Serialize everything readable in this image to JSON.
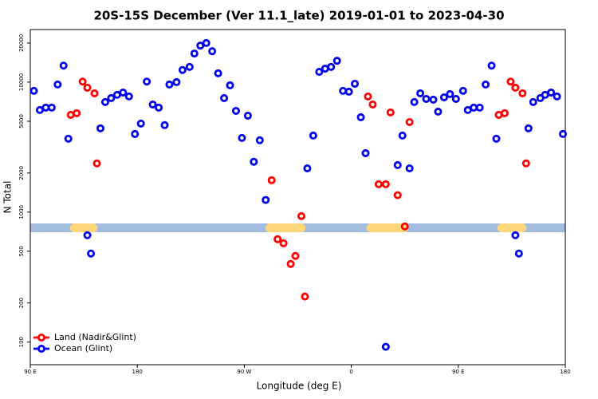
{
  "chart_data": {
    "type": "scatter",
    "title": "20S-15S December (Ver 11.1_late)   2019-01-01 to 2023-04-30",
    "x_label": "Longitude (deg E)",
    "y_label": "N Total",
    "xlim": [
      90,
      540
    ],
    "ylim": [
      67,
      25400
    ],
    "y_log": true,
    "legend": "bottom-left",
    "xticks": [
      {
        "value": 90,
        "label": "90 E"
      },
      180,
      {
        "value": 270,
        "label": "90 W"
      },
      {
        "value": 360,
        "label": "0"
      },
      {
        "value": 450,
        "label": "90 E"
      },
      {
        "value": 540,
        "label": "180"
      }
    ],
    "yticks": [
      100,
      200,
      500,
      1000,
      2000,
      5000,
      10000,
      20000
    ],
    "series": [
      {
        "name": "Land (Nadir&Glint)",
        "color": "#ff0000",
        "x": [
          124,
          129,
          134,
          138,
          144,
          146,
          293,
          298,
          303,
          309,
          313,
          318,
          321,
          374,
          378,
          383,
          389,
          393,
          399,
          405,
          409,
          484,
          489,
          494,
          498,
          504,
          507
        ],
        "values": [
          5600,
          5770,
          10100,
          9060,
          8200,
          2370,
          1760,
          619,
          576,
          399,
          460,
          931,
          224,
          7760,
          6730,
          1640,
          1640,
          5850,
          1350,
          776,
          4930,
          5600,
          5770,
          10100,
          9060,
          8200,
          2370
        ]
      },
      {
        "name": "Ocean (Glint)",
        "color": "#0000ee",
        "x": [
          93,
          98,
          103,
          108,
          113,
          118,
          122,
          138,
          141,
          149,
          153,
          158,
          163,
          168,
          173,
          178,
          183,
          188,
          193,
          198,
          203,
          207,
          213,
          218,
          224,
          228,
          233,
          238,
          243,
          248,
          253,
          258,
          263,
          268,
          273,
          278,
          283,
          288,
          323,
          328,
          333,
          338,
          343,
          348,
          353,
          358,
          363,
          368,
          372,
          389,
          399,
          403,
          409,
          413,
          418,
          423,
          429,
          433,
          438,
          443,
          448,
          454,
          458,
          463,
          468,
          473,
          478,
          482,
          498,
          501,
          509,
          513,
          519,
          523,
          528,
          533,
          538
        ],
        "values": [
          8570,
          6100,
          6370,
          6370,
          9590,
          13400,
          3670,
          664,
          480,
          4410,
          7030,
          7540,
          7980,
          8320,
          7760,
          3990,
          4800,
          10100,
          6730,
          6370,
          4670,
          9590,
          10000,
          12400,
          13100,
          16600,
          19100,
          20000,
          17300,
          11700,
          7540,
          9450,
          6010,
          3720,
          5520,
          2440,
          3570,
          1240,
          2170,
          3880,
          12000,
          12700,
          13100,
          14600,
          8570,
          8440,
          9720,
          5370,
          2840,
          92,
          2300,
          3880,
          2170,
          7030,
          8200,
          7430,
          7330,
          5930,
          7640,
          8090,
          7430,
          8570,
          6100,
          6370,
          6370,
          9590,
          13400,
          3670,
          664,
          480,
          4410,
          7030,
          7540,
          7980,
          8320,
          7760,
          3990
        ]
      }
    ]
  }
}
